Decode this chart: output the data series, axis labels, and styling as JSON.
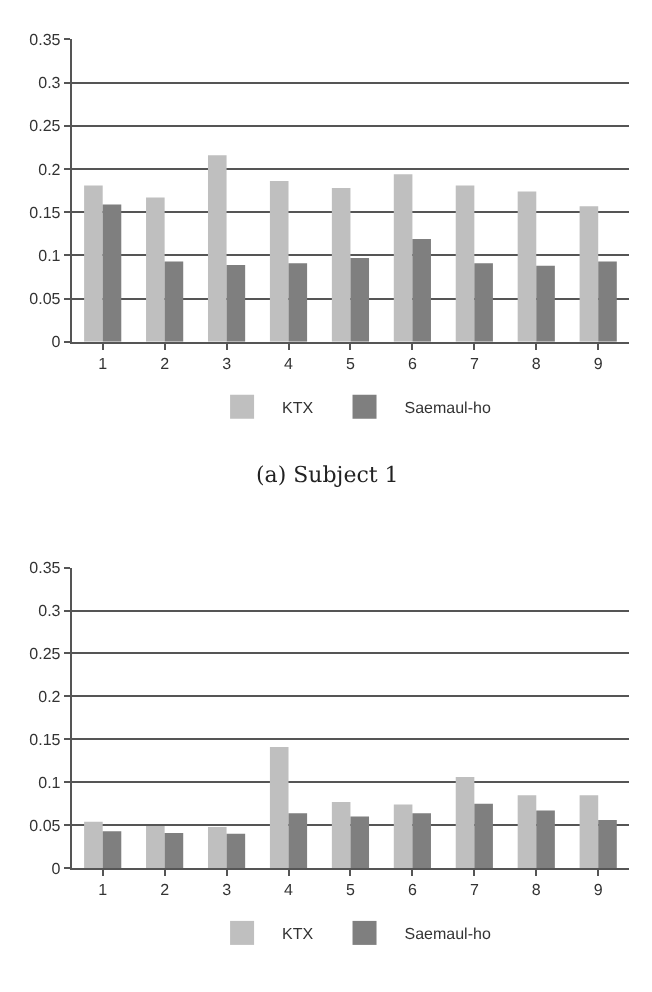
{
  "chart_data": [
    {
      "type": "bar",
      "categories": [
        "1",
        "2",
        "3",
        "4",
        "5",
        "6",
        "7",
        "8",
        "9"
      ],
      "series": [
        {
          "name": "KTX",
          "color": "#bfbfbf",
          "values": [
            0.181,
            0.167,
            0.216,
            0.186,
            0.178,
            0.194,
            0.181,
            0.174,
            0.157
          ]
        },
        {
          "name": "Saemaul-ho",
          "color": "#7f7f7f",
          "values": [
            0.159,
            0.093,
            0.089,
            0.091,
            0.097,
            0.119,
            0.091,
            0.088,
            0.093
          ]
        }
      ],
      "ylim": [
        0,
        0.35
      ],
      "yticks": [
        0,
        0.05,
        0.1,
        0.15,
        0.2,
        0.25,
        0.3,
        0.35
      ],
      "grid": "y",
      "legend": "bottom",
      "annotations": [
        "(a) Subject 1"
      ]
    },
    {
      "type": "bar",
      "categories": [
        "1",
        "2",
        "3",
        "4",
        "5",
        "6",
        "7",
        "8",
        "9"
      ],
      "series": [
        {
          "name": "KTX",
          "color": "#bfbfbf",
          "values": [
            0.054,
            0.049,
            0.048,
            0.141,
            0.077,
            0.074,
            0.106,
            0.085,
            0.085
          ]
        },
        {
          "name": "Saemaul-ho",
          "color": "#7f7f7f",
          "values": [
            0.043,
            0.041,
            0.04,
            0.064,
            0.06,
            0.064,
            0.075,
            0.067,
            0.056
          ]
        }
      ],
      "ylim": [
        0,
        0.35
      ],
      "yticks": [
        0,
        0.05,
        0.1,
        0.15,
        0.2,
        0.25,
        0.3,
        0.35
      ],
      "grid": "y",
      "legend": "bottom"
    }
  ]
}
